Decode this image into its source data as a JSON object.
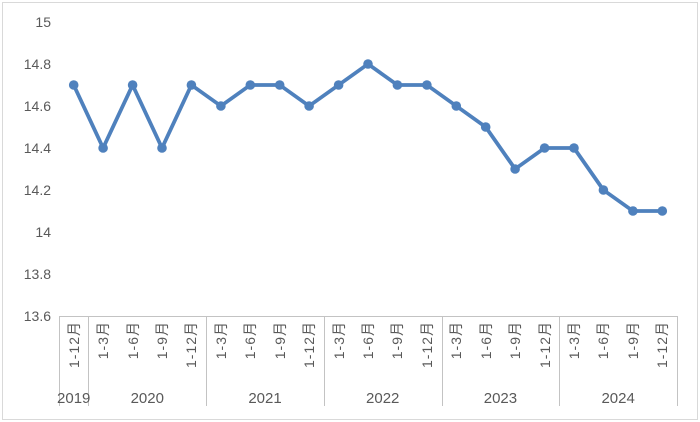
{
  "chart_data": {
    "type": "line",
    "title": "",
    "xlabel": "",
    "ylabel": "",
    "legend": false,
    "grid": false,
    "ylim": [
      13.6,
      15
    ],
    "y_tick_step": 0.2,
    "y_ticks": [
      "15",
      "14.8",
      "14.6",
      "14.4",
      "14.2",
      "14",
      "13.8",
      "13.6"
    ],
    "y_tick_values": [
      15,
      14.8,
      14.6,
      14.4,
      14.2,
      14,
      13.8,
      13.6
    ],
    "groups": [
      {
        "year": "2019",
        "periods": [
          "1-12月"
        ]
      },
      {
        "year": "2020",
        "periods": [
          "1-3月",
          "1-6月",
          "1-9月",
          "1-12月"
        ]
      },
      {
        "year": "2021",
        "periods": [
          "1-3月",
          "1-6月",
          "1-9月",
          "1-12月"
        ]
      },
      {
        "year": "2022",
        "periods": [
          "1-3月",
          "1-6月",
          "1-9月",
          "1-12月"
        ]
      },
      {
        "year": "2023",
        "periods": [
          "1-3月",
          "1-6月",
          "1-9月",
          "1-12月"
        ]
      },
      {
        "year": "2024",
        "periods": [
          "1-3月",
          "1-6月",
          "1-9月",
          "1-12月"
        ]
      }
    ],
    "series": [
      {
        "values": [
          14.7,
          14.4,
          14.7,
          14.4,
          14.7,
          14.6,
          14.7,
          14.7,
          14.6,
          14.7,
          14.8,
          14.7,
          14.7,
          14.6,
          14.5,
          14.3,
          14.4,
          14.4,
          14.2,
          14.1,
          14.1
        ]
      }
    ],
    "colors": {
      "line": "#4F81BD",
      "marker": "#4F81BD",
      "axis_line": "#C3C3C3",
      "tick_text": "#595959",
      "border": "#D9D9D9",
      "background": "#FFFFFF"
    }
  }
}
